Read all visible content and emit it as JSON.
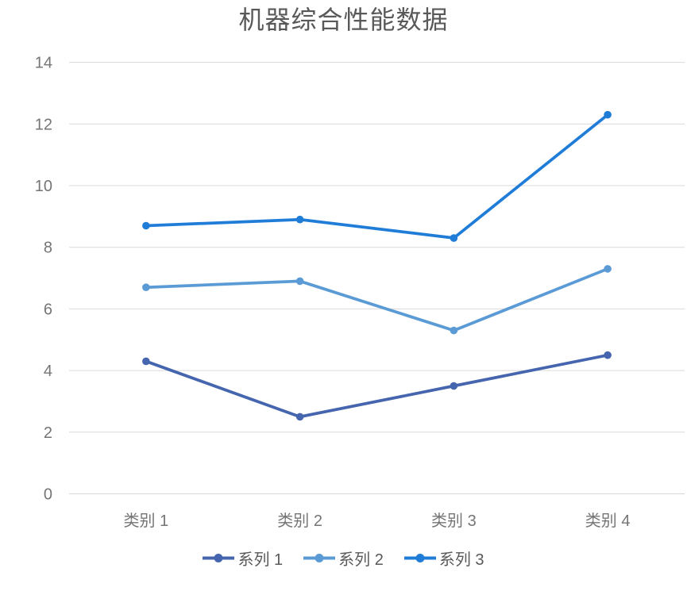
{
  "chart_data": {
    "type": "line",
    "title": "机器综合性能数据",
    "categories": [
      "类别 1",
      "类别 2",
      "类别 3",
      "类别 4"
    ],
    "series": [
      {
        "name": "系列 1",
        "values": [
          4.3,
          2.5,
          3.5,
          4.5
        ],
        "color": "#4565AE"
      },
      {
        "name": "系列 2",
        "values": [
          6.7,
          6.9,
          5.3,
          7.3
        ],
        "color": "#5B9BD5"
      },
      {
        "name": "系列 3",
        "values": [
          8.7,
          8.9,
          8.3,
          12.3
        ],
        "color": "#1F7CD7"
      }
    ],
    "xlabel": "",
    "ylabel": "",
    "ylim": [
      0,
      14
    ],
    "yticks": [
      0,
      2,
      4,
      6,
      8,
      10,
      12,
      14
    ],
    "grid": true,
    "legend_position": "bottom",
    "colors": {
      "grid": "#D9D9D9",
      "tick_label": "#757575",
      "title": "#595959",
      "legend_label": "#595959",
      "background": "#FFFFFF"
    }
  }
}
